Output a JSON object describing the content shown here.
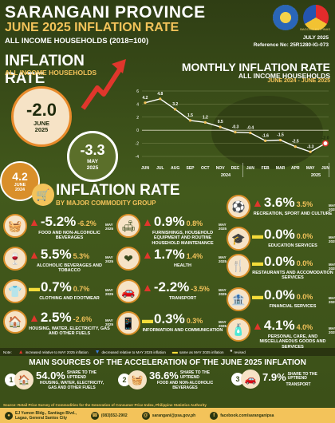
{
  "header": {
    "province": "SARANGANI PROVINCE",
    "title": "JUNE 2025 INFLATION RATE",
    "subtitle": "ALL INCOME HOUSEHOLDS (2018=100)",
    "release_date": "JULY 2025",
    "reference": "Reference No: 25R1280-IG-073",
    "logo_caption": "BAGONG PILIPINAS"
  },
  "headline": {
    "title": "INFLATION RATE",
    "subtitle": "ALL INCOME HOUSEHOLDS",
    "current": {
      "value": "-2.0",
      "label1": "JUNE",
      "label2": "2025"
    },
    "previous": {
      "value": "-3.3",
      "label1": "MAY",
      "label2": "2025"
    },
    "year_ago": {
      "value": "4.2",
      "label1": "JUNE",
      "label2": "2024"
    }
  },
  "monthly": {
    "title": "MONTHLY INFLATION RATE",
    "subtitle": "ALL INCOME HOUSEHOLDS",
    "range": "JUNE 2024 - JUNE 2025"
  },
  "chart_data": {
    "type": "line",
    "title": "MONTHLY INFLATION RATE",
    "categories": [
      "JUN",
      "JUL",
      "AUG",
      "SEP",
      "OCT",
      "NOV",
      "DEC",
      "JAN",
      "FEB",
      "MAR",
      "APR",
      "MAY",
      "JUN"
    ],
    "values": [
      4.2,
      4.8,
      3.2,
      1.5,
      1.2,
      0.5,
      -0.3,
      -0.4,
      -1.6,
      -1.5,
      -2.5,
      -3.3,
      -2.0
    ],
    "value_labels": [
      "4.2",
      "4.8",
      "3.2",
      "1.5",
      "1.2",
      "0.5",
      "-0.3",
      "-0.4",
      "-1.6",
      "-1.5",
      "-2.5",
      "-3.3",
      "-2.0"
    ],
    "year_labels": [
      {
        "after_index": 6,
        "text": "2024"
      },
      {
        "after_index": 12,
        "text": "2025"
      }
    ],
    "ylim": [
      -4,
      6
    ],
    "yticks": [
      6,
      4,
      2,
      0,
      -2,
      -4
    ],
    "grid": true,
    "line_color": "#ffffff",
    "marker_color": "#f3c35a"
  },
  "commodity": {
    "title": "INFLATION RATE",
    "subtitle": "BY MAJOR COMMODITY GROUP",
    "items": [
      {
        "arrow": "up",
        "value": "-5.2%",
        "prev": "-6.2%",
        "m1": "MAY",
        "m2": "2025",
        "name": "FOOD AND NON-ALCOHOLIC BEVERAGES",
        "icon": "food-basket-icon",
        "glyph": "🧺"
      },
      {
        "arrow": "up",
        "value": "5.5%",
        "prev": "5.3%",
        "m1": "MAY",
        "m2": "2025",
        "name": "ALCOHOLIC BEVERAGES AND TOBACCO",
        "icon": "wine-icon",
        "glyph": "🍷"
      },
      {
        "arrow": "same",
        "value": "0.7%",
        "prev": "0.7%",
        "m1": "MAY",
        "m2": "2025",
        "name": "CLOTHING AND FOOTWEAR",
        "icon": "shirt-icon",
        "glyph": "👕"
      },
      {
        "arrow": "up",
        "value": "2.5%",
        "prev": "-2.6%",
        "m1": "MAY",
        "m2": "2025",
        "name": "HOUSING, WATER, ELECTRICITY, GAS AND OTHER FUELS",
        "icon": "house-icon",
        "glyph": "🏠"
      },
      {
        "arrow": "up",
        "value": "0.9%",
        "prev": "0.8%",
        "m1": "MAY",
        "m2": "2025",
        "name": "FURNISHINGS, HOUSEHOLD EQUIPMENT AND ROUTINE HOUSEHOLD MAINTENANCE",
        "icon": "sofa-icon",
        "glyph": "🛋"
      },
      {
        "arrow": "up",
        "value": "1.7%",
        "prev": "1.4%",
        "m1": "MAY",
        "m2": "2025",
        "name": "HEALTH",
        "icon": "health-icon",
        "glyph": "❤"
      },
      {
        "arrow": "up",
        "value": "-2.2%",
        "prev": "-3.5%",
        "m1": "MAY",
        "m2": "2025",
        "name": "TRANSPORT",
        "icon": "car-icon",
        "glyph": "🚗"
      },
      {
        "arrow": "same",
        "value": "0.3%",
        "prev": "0.3%",
        "m1": "MAY",
        "m2": "2025",
        "name": "INFORMATION AND COMMUNICATION",
        "icon": "phone-icon",
        "glyph": "📱"
      },
      {
        "arrow": "up",
        "value": "3.6%",
        "prev": "3.5%",
        "m1": "MAY",
        "m2": "2025",
        "name": "RECREATION, SPORT AND CULTURE",
        "icon": "ball-icon",
        "glyph": "⚽"
      },
      {
        "arrow": "same",
        "value": "0.0%",
        "prev": "0.0%",
        "m1": "MAY",
        "m2": "2025",
        "name": "EDUCATION SERVICES",
        "icon": "graduation-icon",
        "glyph": "🎓"
      },
      {
        "arrow": "same",
        "value": "0.0%",
        "prev": "0.0%",
        "m1": "MAY",
        "m2": "2025",
        "name": "RESTAURANTS AND ACCOMODATION SERVICES",
        "icon": "restaurant-icon",
        "glyph": "🍴"
      },
      {
        "arrow": "same",
        "value": "0.0%",
        "prev": "0.0%",
        "m1": "MAY",
        "m2": "2025",
        "name": "FINANCIAL SERVICES",
        "icon": "bank-icon",
        "glyph": "🏦"
      },
      {
        "arrow": "up",
        "value": "4.1%",
        "prev": "4.0%",
        "m1": "MAY",
        "m2": "2025",
        "name": "PERSONAL CARE, AND MISCELLANEOUS GOODS AND SERVICES",
        "icon": "care-icon",
        "glyph": "🧴"
      }
    ]
  },
  "legend": {
    "note": "Note:",
    "up": "increased relative to MAY 2025 inflation",
    "down": "decreased relative to MAY 2025 inflation",
    "same": "same as MAY 2025 inflation",
    "revised": "revised"
  },
  "sources": {
    "title": "MAIN SOURCES OF THE ACCELERATION OF THE JUNE 2025 INFLATION",
    "items": [
      {
        "num": "1",
        "pct": "54.0%",
        "share1": "SHARE TO THE",
        "share2": "UPTREND",
        "name": "HOUSING, WATER, ELECTRICITY, GAS AND OTHER FUELS",
        "icon": "house-icon",
        "glyph": "🏠"
      },
      {
        "num": "2",
        "pct": "36.6%",
        "share1": "SHARE TO THE",
        "share2": "UPTREND",
        "name": "FOOD AND NON-ALCOHOLIC BEVERAGES",
        "icon": "food-basket-icon",
        "glyph": "🧺"
      },
      {
        "num": "3",
        "pct": "7.9%",
        "share1": "SHARE TO THE",
        "share2": "UPTREND",
        "name": "TRANSPORT",
        "icon": "car-icon",
        "glyph": "🚗"
      }
    ]
  },
  "footer": {
    "source": "Source: Retail Price Survey of Commodities for the Generation of Consumer Price Index, Philippine Statistics Authority",
    "address1": "EJ Yumon Bldg., Santiago Blvd.,",
    "address2": "Lagao, General Santos City",
    "phone": "(083)552-2902",
    "email": "sarangani@psa.gov.ph",
    "facebook": "facebook.com/saranganipsa"
  }
}
